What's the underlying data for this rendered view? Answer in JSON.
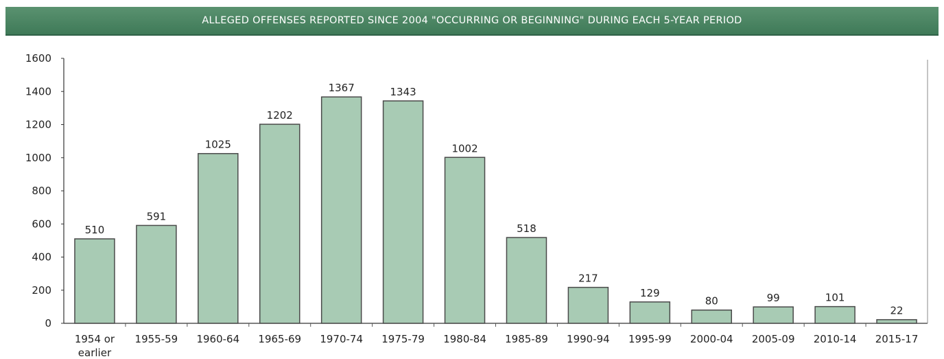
{
  "chart_data": {
    "type": "bar",
    "title": "ALLEGED OFFENSES REPORTED SINCE 2004 \"OCCURRING OR BEGINNING\" DURING EACH 5-YEAR PERIOD",
    "xlabel": "",
    "ylabel": "",
    "categories": [
      "1954 or earlier",
      "1955-59",
      "1960-64",
      "1965-69",
      "1970-74",
      "1975-79",
      "1980-84",
      "1985-89",
      "1990-94",
      "1995-99",
      "2000-04",
      "2005-09",
      "2010-14",
      "2015-17"
    ],
    "values": [
      510,
      591,
      1025,
      1202,
      1367,
      1343,
      1002,
      518,
      217,
      129,
      80,
      99,
      101,
      22
    ],
    "ylim": [
      0,
      1600
    ],
    "yticks": [
      0,
      200,
      400,
      600,
      800,
      1000,
      1200,
      1400,
      1600
    ],
    "grid": false,
    "colors": {
      "bar": "#a8cbb4",
      "bar_border": "#4a4a4a",
      "banner": "#4a8563"
    }
  }
}
